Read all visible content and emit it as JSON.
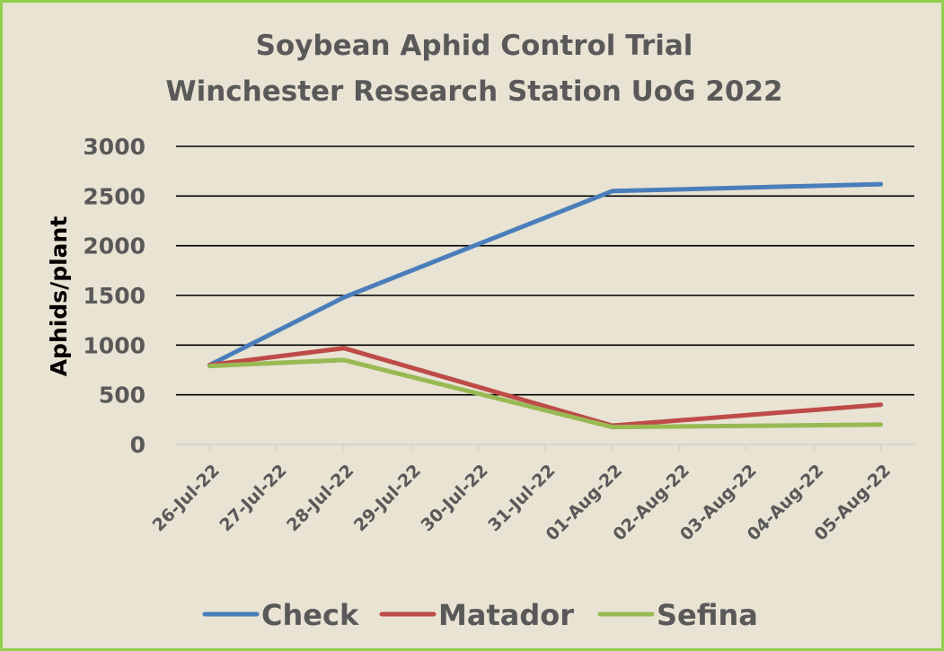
{
  "chart_data": {
    "type": "line",
    "title_lines": [
      "Soybean Aphid Control Trial",
      "Winchester Research Station UoG 2022"
    ],
    "ylabel": "Aphids/plant",
    "xlabel": "",
    "ylim": [
      0,
      3000
    ],
    "yticks": [
      0,
      500,
      1000,
      1500,
      2000,
      2500,
      3000
    ],
    "categories": [
      "26-Jul-22",
      "27-Jul-22",
      "28-Jul-22",
      "29-Jul-22",
      "30-Jul-22",
      "31-Jul-22",
      "01-Aug-22",
      "02-Aug-22",
      "03-Aug-22",
      "04-Aug-22",
      "05-Aug-22"
    ],
    "grid": true,
    "legend_position": "bottom",
    "series": [
      {
        "name": "Check",
        "color": "#4a7ebb",
        "points": [
          {
            "x": "26-Jul-22",
            "y": 800
          },
          {
            "x": "28-Jul-22",
            "y": 1480
          },
          {
            "x": "01-Aug-22",
            "y": 2550
          },
          {
            "x": "05-Aug-22",
            "y": 2620
          }
        ]
      },
      {
        "name": "Matador",
        "color": "#be4b48",
        "points": [
          {
            "x": "26-Jul-22",
            "y": 800
          },
          {
            "x": "28-Jul-22",
            "y": 970
          },
          {
            "x": "01-Aug-22",
            "y": 190
          },
          {
            "x": "05-Aug-22",
            "y": 400
          }
        ]
      },
      {
        "name": "Sefina",
        "color": "#98b954",
        "points": [
          {
            "x": "26-Jul-22",
            "y": 790
          },
          {
            "x": "28-Jul-22",
            "y": 850
          },
          {
            "x": "01-Aug-22",
            "y": 175
          },
          {
            "x": "05-Aug-22",
            "y": 200
          }
        ]
      }
    ]
  }
}
